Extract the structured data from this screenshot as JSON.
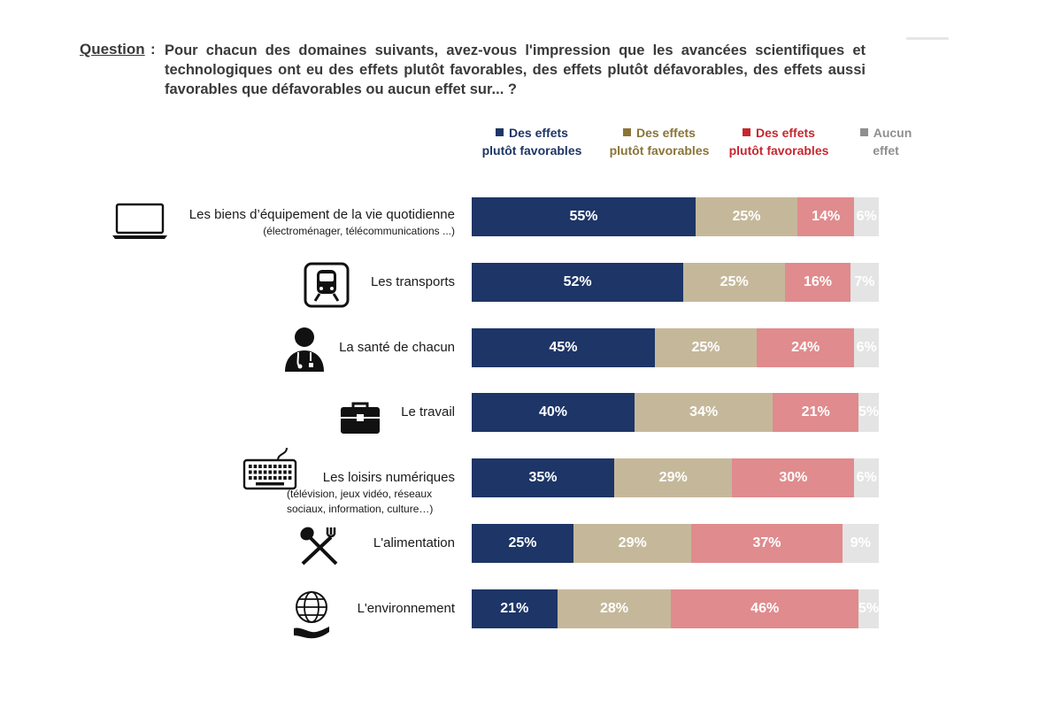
{
  "question": {
    "label": "Question",
    "colon": ":",
    "text": "Pour chacun des domaines suivants, avez-vous l'impression que les avancées scientifiques et technologiques ont eu des effets plutôt favorables, des effets plutôt défavorables, des effets aussi favorables que défavorables ou aucun effet sur... ?"
  },
  "chart_data": {
    "type": "bar",
    "orientation": "horizontal",
    "stacked": true,
    "xlim": [
      0,
      100
    ],
    "legend_position": "top",
    "grid": false,
    "categories": [
      {
        "label": "Les biens d’équipement de la vie quotidienne",
        "sublabel": "(électroménager, télécommunications ...)",
        "icon": "laptop-icon"
      },
      {
        "label": "Les transports",
        "sublabel": "",
        "icon": "train-icon"
      },
      {
        "label": "La santé de chacun",
        "sublabel": "",
        "icon": "doctor-icon"
      },
      {
        "label": "Le travail",
        "sublabel": "",
        "icon": "briefcase-icon"
      },
      {
        "label": "Les loisirs numériques",
        "sublabel": "(télévision, jeux vidéo, réseaux sociaux, information, culture…)",
        "icon": "keyboard-icon"
      },
      {
        "label": "L'alimentation",
        "sublabel": "",
        "icon": "fork-spoon-icon"
      },
      {
        "label": "L'environnement",
        "sublabel": "",
        "icon": "globe-hand-icon"
      }
    ],
    "series": [
      {
        "name": "Des effets plutôt favorables",
        "legend_lines": [
          "Des effets",
          "plutôt favorables"
        ],
        "color": "#1d3567",
        "legend_color": "#1d3567",
        "values": [
          55,
          52,
          45,
          40,
          35,
          25,
          21
        ]
      },
      {
        "name": "Des effets plutôt favorables",
        "legend_lines": [
          "Des effets",
          "plutôt favorables"
        ],
        "color": "#c5b89a",
        "legend_color": "#8a7437",
        "values": [
          25,
          25,
          25,
          34,
          29,
          29,
          28
        ]
      },
      {
        "name": "Des effets plutôt favorables",
        "legend_lines": [
          "Des effets",
          "plutôt favorables"
        ],
        "color": "#e08b8d",
        "legend_color": "#c8262e",
        "values": [
          14,
          16,
          24,
          21,
          30,
          37,
          46
        ]
      },
      {
        "name": "Aucun effet",
        "legend_lines": [
          "Aucun",
          "effet"
        ],
        "color": "#e4e4e4",
        "legend_color": "#8f8f8f",
        "values": [
          6,
          7,
          6,
          5,
          6,
          9,
          5
        ]
      }
    ]
  }
}
